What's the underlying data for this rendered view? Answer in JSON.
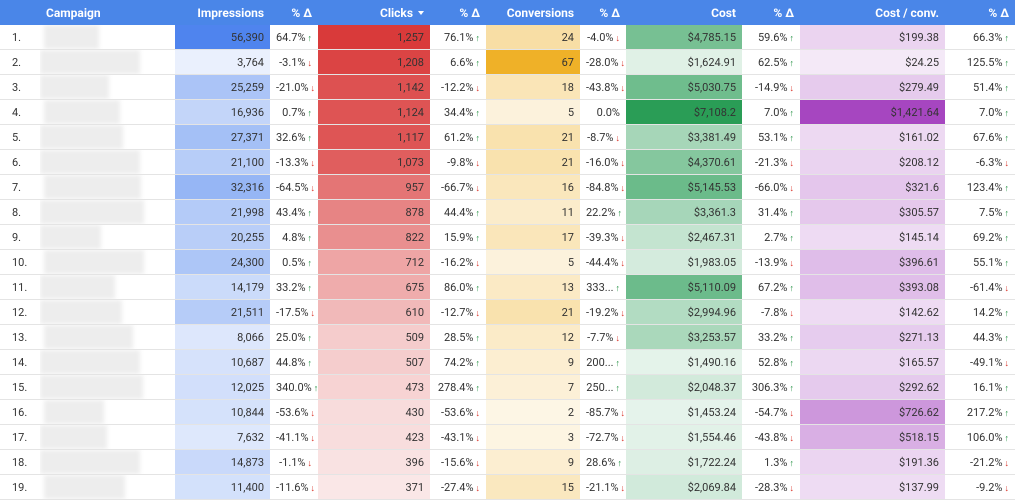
{
  "table": {
    "columns": [
      {
        "label": "Campaign"
      },
      {
        "label": "Impressions",
        "color": "#4f84ee"
      },
      {
        "label": "% Δ"
      },
      {
        "label": "Clicks",
        "color": "#d93a3a"
      },
      {
        "label": "% Δ"
      },
      {
        "label": "Conversions",
        "color": "#efb128"
      },
      {
        "label": "% Δ"
      },
      {
        "label": "Cost",
        "color": "#2a9d56"
      },
      {
        "label": "% Δ"
      },
      {
        "label": "Cost / conv.",
        "color": "#a646c0"
      },
      {
        "label": "% Δ"
      }
    ],
    "rows": [
      [
        "1.",
        "56,390",
        "64.7%",
        "1,257",
        "76.1%",
        "24",
        "-4.0%",
        "$4,785.15",
        "59.6%",
        "$199.38",
        "66.3%"
      ],
      [
        "2.",
        "3,764",
        "-3.1%",
        "1,208",
        "6.6%",
        "67",
        "-28.0%",
        "$1,624.91",
        "62.5%",
        "$24.25",
        "125.5%"
      ],
      [
        "3.",
        "25,259",
        "-21.0%",
        "1,142",
        "-12.2%",
        "18",
        "-43.8%",
        "$5,030.75",
        "-14.9%",
        "$279.49",
        "51.4%"
      ],
      [
        "4.",
        "16,936",
        "0.7%",
        "1,124",
        "34.4%",
        "5",
        "0.0%",
        "$7,108.2",
        "7.0%",
        "$1,421.64",
        "7.0%"
      ],
      [
        "5.",
        "27,371",
        "32.6%",
        "1,117",
        "61.2%",
        "21",
        "-8.7%",
        "$3,381.49",
        "53.1%",
        "$161.02",
        "67.6%"
      ],
      [
        "6.",
        "21,100",
        "-13.3%",
        "1,073",
        "-9.8%",
        "21",
        "-16.0%",
        "$4,370.61",
        "-21.3%",
        "$208.12",
        "-6.3%"
      ],
      [
        "7.",
        "32,316",
        "-64.5%",
        "957",
        "-66.7%",
        "16",
        "-84.8%",
        "$5,145.53",
        "-66.0%",
        "$321.6",
        "123.4%"
      ],
      [
        "8.",
        "21,998",
        "43.4%",
        "878",
        "44.4%",
        "11",
        "22.2%",
        "$3,361.3",
        "31.4%",
        "$305.57",
        "7.5%"
      ],
      [
        "9.",
        "20,255",
        "4.8%",
        "822",
        "15.9%",
        "17",
        "-39.3%",
        "$2,467.31",
        "2.7%",
        "$145.14",
        "69.2%"
      ],
      [
        "10.",
        "24,300",
        "0.5%",
        "712",
        "-16.2%",
        "5",
        "-44.4%",
        "$1,983.05",
        "-13.9%",
        "$396.61",
        "55.1%"
      ],
      [
        "11.",
        "14,179",
        "33.2%",
        "675",
        "86.0%",
        "13",
        "333...",
        "$5,110.09",
        "67.2%",
        "$393.08",
        "-61.4%"
      ],
      [
        "12.",
        "21,511",
        "-17.5%",
        "610",
        "-12.7%",
        "21",
        "-19.2%",
        "$2,994.96",
        "-7.8%",
        "$142.62",
        "14.2%"
      ],
      [
        "13.",
        "8,066",
        "25.0%",
        "509",
        "28.5%",
        "12",
        "-7.7%",
        "$3,253.57",
        "33.2%",
        "$271.13",
        "44.3%"
      ],
      [
        "14.",
        "10,687",
        "44.8%",
        "507",
        "74.2%",
        "9",
        "200...",
        "$1,490.16",
        "52.8%",
        "$165.57",
        "-49.1%"
      ],
      [
        "15.",
        "12,025",
        "340.0%",
        "473",
        "278.4%",
        "7",
        "250...",
        "$2,048.37",
        "306.3%",
        "$292.62",
        "16.1%"
      ],
      [
        "16.",
        "10,844",
        "-53.6%",
        "430",
        "-53.6%",
        "2",
        "-85.7%",
        "$1,453.24",
        "-54.7%",
        "$726.62",
        "217.2%"
      ],
      [
        "17.",
        "7,632",
        "-41.1%",
        "423",
        "-43.1%",
        "3",
        "-72.7%",
        "$1,554.46",
        "-43.8%",
        "$518.15",
        "106.0%"
      ],
      [
        "18.",
        "14,873",
        "-1.1%",
        "396",
        "-15.6%",
        "9",
        "28.6%",
        "$1,722.24",
        "1.3%",
        "$191.36",
        "-21.2%"
      ],
      [
        "19.",
        "11,400",
        "-11.6%",
        "371",
        "-27.4%",
        "15",
        "-21.1%",
        "$2,069.84",
        "-28.3%",
        "$137.99",
        "-9.2%"
      ]
    ]
  }
}
